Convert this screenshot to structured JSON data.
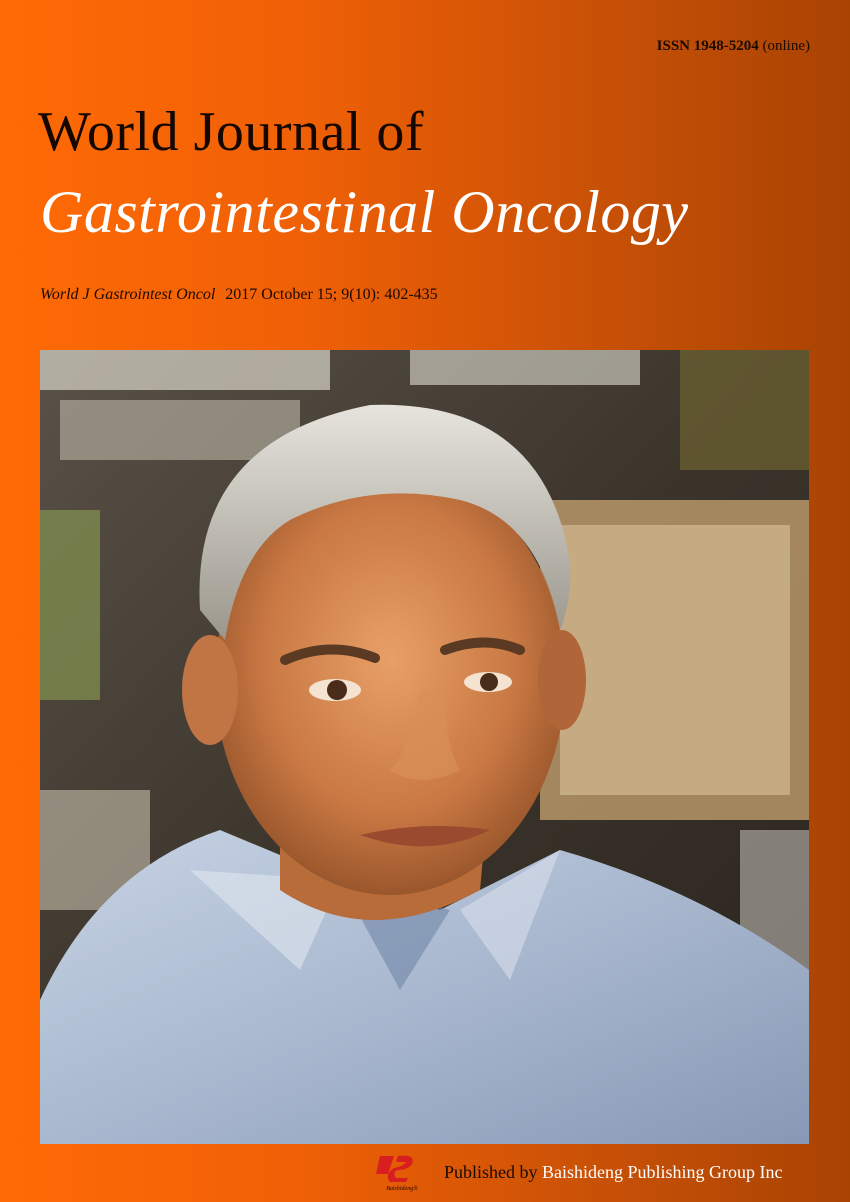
{
  "header": {
    "issn_label": "ISSN 1948-5204",
    "issn_suffix": "(online)"
  },
  "title": {
    "line1": "World Journal of",
    "line2": "Gastrointestinal Oncology"
  },
  "citation": {
    "abbrev": "World J Gastrointest Oncol",
    "details": "2017 October 15; 9(10): 402-435"
  },
  "footer": {
    "logo_text": "Baishideng®",
    "published_by": "Published by",
    "publisher_name": "Baishideng Publishing Group Inc"
  },
  "colors": {
    "background_left": "#ff6a05",
    "background_right": "#a94304",
    "title_white": "#ffffff",
    "logo_red": "#d81e1e"
  }
}
